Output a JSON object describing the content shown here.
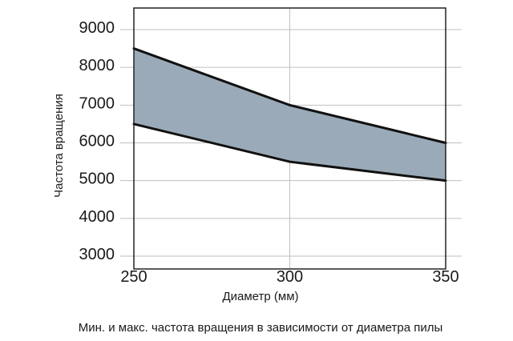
{
  "chart_data": {
    "type": "area",
    "xlabel": "Диаметр (мм)",
    "ylabel": "Частота вращения",
    "caption": "Мин. и макс. частота вращения в зависимости от диаметра пилы",
    "x": [
      250,
      300,
      350
    ],
    "xlim": [
      250,
      350
    ],
    "ylim": [
      3000,
      9000
    ],
    "x_ticks": [
      "250",
      "300",
      "350"
    ],
    "y_ticks": [
      "3000",
      "4000",
      "5000",
      "6000",
      "7000",
      "8000",
      "9000"
    ],
    "grid": true,
    "series": [
      {
        "values": [
          6500,
          5500,
          5000
        ]
      },
      {
        "values": [
          8500,
          7000,
          6000
        ]
      }
    ],
    "colors": {
      "band_fill": "#9aaab8",
      "line": "#111111",
      "grid": "#bfbfbf",
      "frame": "#222222"
    }
  }
}
